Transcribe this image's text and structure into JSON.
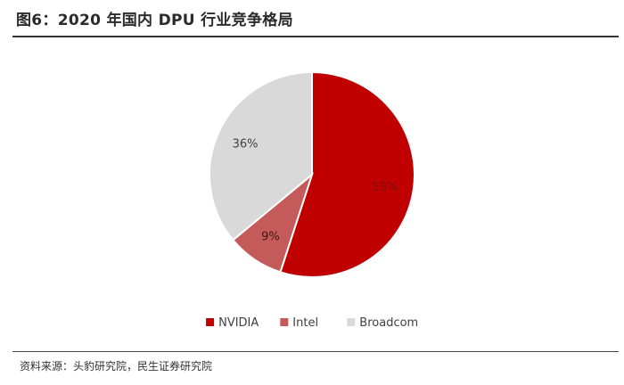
{
  "figure": {
    "title": "图6：2020 年国内 DPU 行业竞争格局",
    "source": "资料来源：头豹研究院，民生证券研究院"
  },
  "chart_data": {
    "type": "pie",
    "slices": [
      {
        "label": "NVIDIA",
        "value": 55,
        "display": "55%",
        "color": "#c00000",
        "label_color": "#7a1010"
      },
      {
        "label": "Intel",
        "value": 9,
        "display": "9%",
        "color": "#c55a5a",
        "label_color": "#3a1a1a"
      },
      {
        "label": "Broadcom",
        "value": 36,
        "display": "36%",
        "color": "#d9d9d9",
        "label_color": "#404040"
      }
    ],
    "start": "12 o'clock",
    "direction": "clockwise",
    "legend": "bottom"
  }
}
